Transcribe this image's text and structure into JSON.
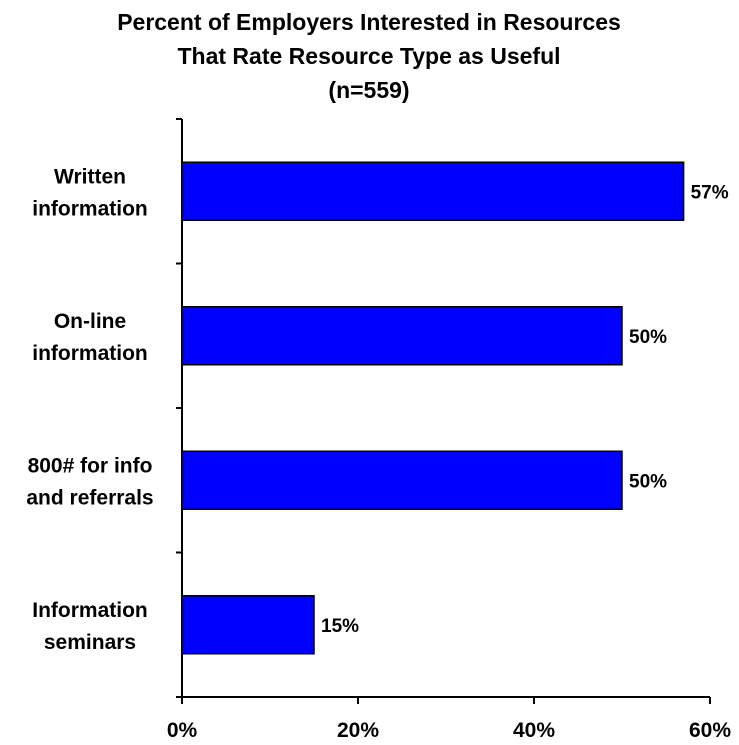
{
  "chart_data": {
    "type": "bar",
    "orientation": "horizontal",
    "title": [
      "Percent of Employers Interested in Resources",
      "That Rate Resource Type as Useful",
      "(n=559)"
    ],
    "categories": [
      [
        "Written",
        "information"
      ],
      [
        "On-line",
        "information"
      ],
      [
        "800# for info",
        "and referrals"
      ],
      [
        "Information",
        "seminars"
      ]
    ],
    "values": [
      57,
      50,
      50,
      15
    ],
    "data_labels": [
      "57%",
      "50%",
      "50%",
      "15%"
    ],
    "xlim": [
      0,
      60
    ],
    "x_ticks": [
      0,
      20,
      40,
      60
    ],
    "x_tick_labels": [
      "0%",
      "20%",
      "40%",
      "60%"
    ],
    "bar_color": "#0000ff",
    "grid": false,
    "legend": "none"
  }
}
